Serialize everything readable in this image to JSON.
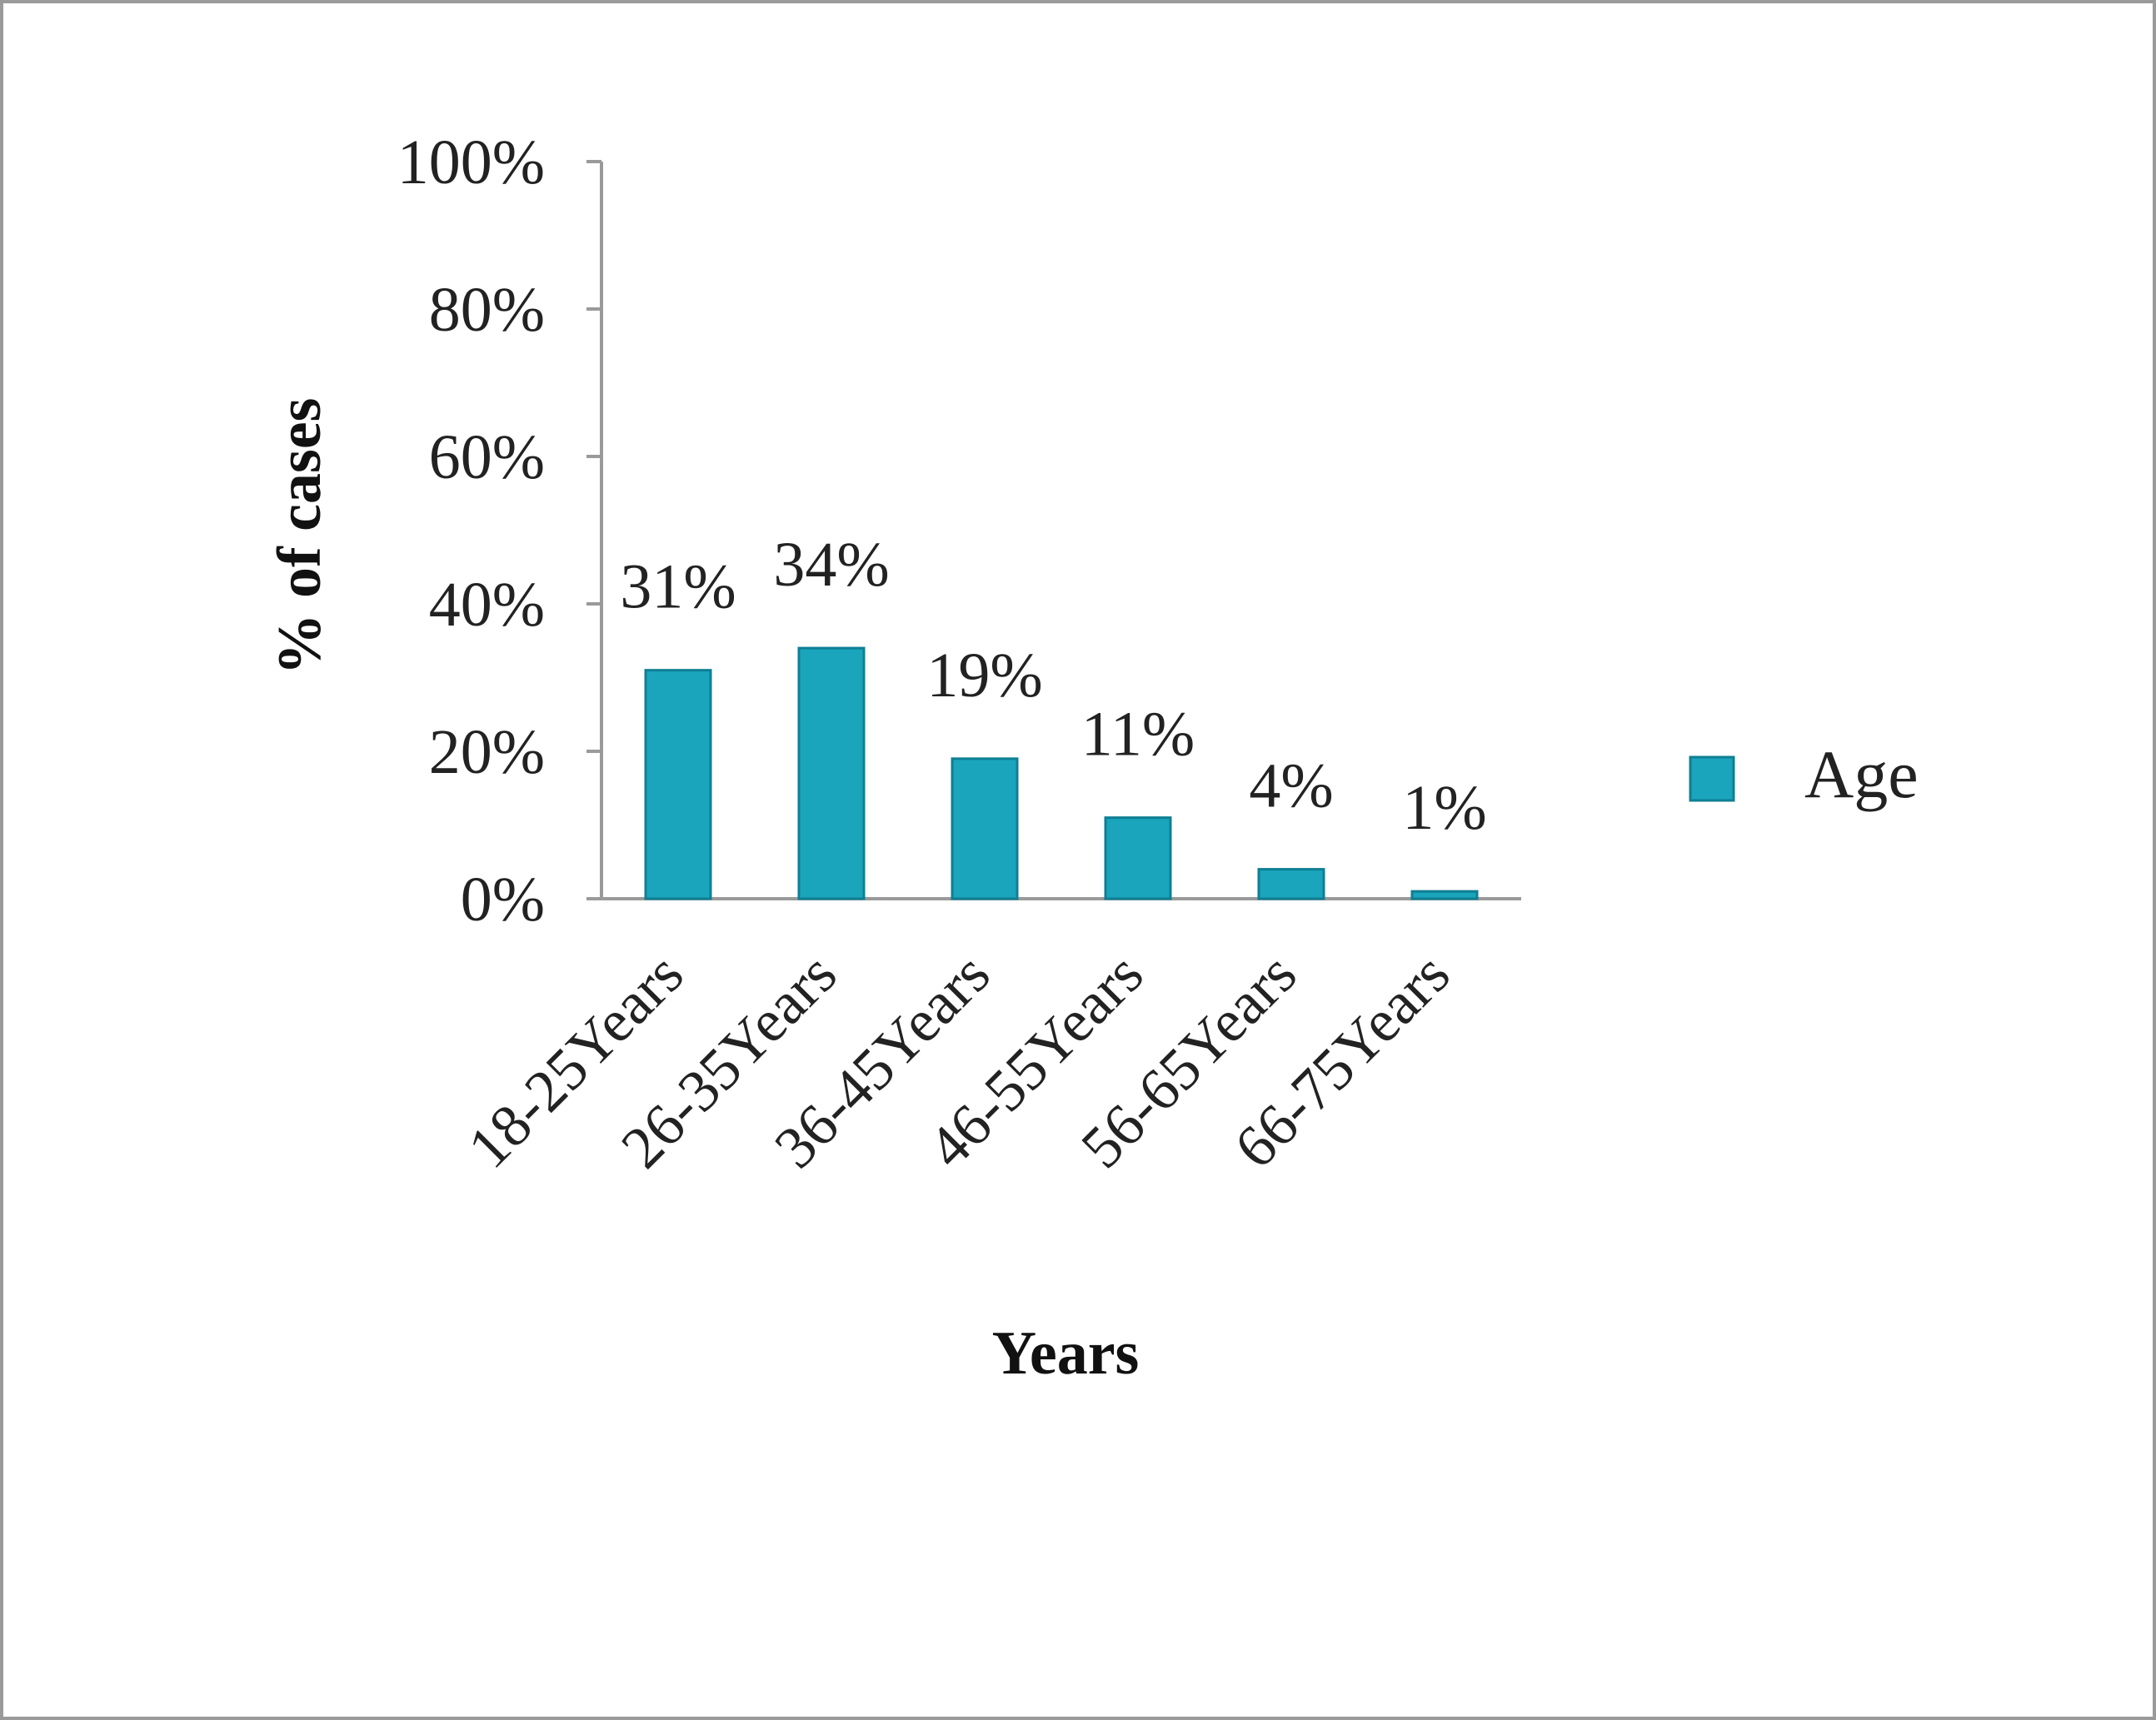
{
  "chart_data": {
    "type": "bar",
    "title": "",
    "xlabel": "Years",
    "ylabel": "%  of cases",
    "categories": [
      "18-25Years",
      "26-35Years",
      "36-45Years",
      "46-55Years",
      "56-65Years",
      "66-75Years"
    ],
    "series": [
      {
        "name": "Age",
        "values": [
          31,
          34,
          19,
          11,
          4,
          1
        ]
      }
    ],
    "data_labels": [
      "31%",
      "34%",
      "19%",
      "11%",
      "4%",
      "1%"
    ],
    "ylim": [
      0,
      100
    ],
    "yticks": [
      "0%",
      "20%",
      "40%",
      "60%",
      "80%",
      "100%"
    ],
    "grid": false,
    "legend_position": "right",
    "colors": {
      "bar": "#1aa5bd",
      "bar_edge": "#0f7f93",
      "axis": "#9a9a9a"
    }
  }
}
